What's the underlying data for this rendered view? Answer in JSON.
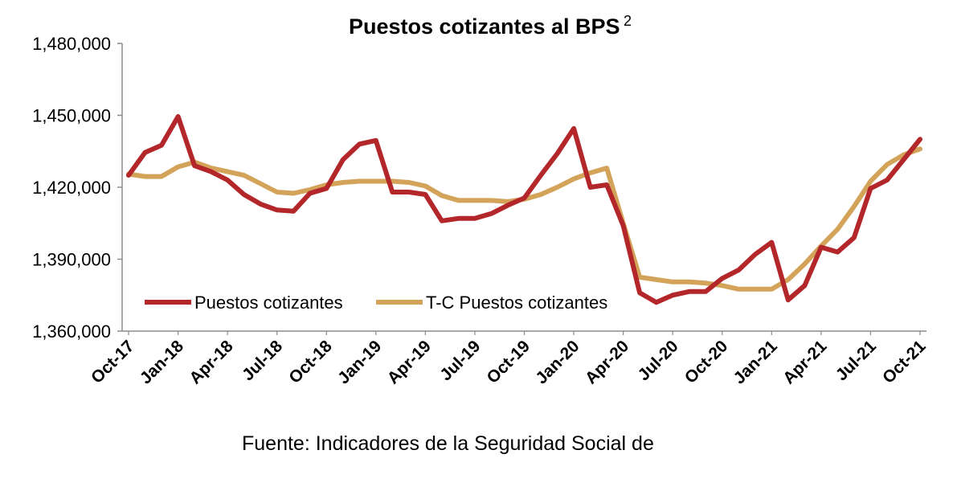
{
  "chart_data": {
    "type": "line",
    "title": "Puestos cotizantes al BPS",
    "title_superscript": "2",
    "xlabel": "",
    "ylabel": "",
    "ylim": [
      1360000,
      1480000
    ],
    "yticks": [
      "1,360,000",
      "1,390,000",
      "1,420,000",
      "1,450,000",
      "1,480,000"
    ],
    "ytick_values": [
      1360000,
      1390000,
      1420000,
      1450000,
      1480000
    ],
    "xtick_labels": [
      "Oct-17",
      "Jan-18",
      "Apr-18",
      "Jul-18",
      "Oct-18",
      "Jan-19",
      "Apr-19",
      "Jul-19",
      "Oct-19",
      "Jan-20",
      "Apr-20",
      "Jul-20",
      "Oct-20",
      "Jan-21",
      "Apr-21",
      "Jul-21",
      "Oct-21"
    ],
    "categories": [
      "Oct-17",
      "Nov-17",
      "Dec-17",
      "Jan-18",
      "Feb-18",
      "Mar-18",
      "Apr-18",
      "May-18",
      "Jun-18",
      "Jul-18",
      "Aug-18",
      "Sep-18",
      "Oct-18",
      "Nov-18",
      "Dec-18",
      "Jan-19",
      "Feb-19",
      "Mar-19",
      "Apr-19",
      "May-19",
      "Jun-19",
      "Jul-19",
      "Aug-19",
      "Sep-19",
      "Oct-19",
      "Nov-19",
      "Dec-19",
      "Jan-20",
      "Feb-20",
      "Mar-20",
      "Apr-20",
      "May-20",
      "Jun-20",
      "Jul-20",
      "Aug-20",
      "Sep-20",
      "Oct-20",
      "Nov-20",
      "Dec-20",
      "Jan-21",
      "Feb-21",
      "Mar-21",
      "Apr-21",
      "May-21",
      "Jun-21",
      "Jul-21",
      "Aug-21",
      "Sep-21",
      "Oct-21"
    ],
    "series": [
      {
        "name": "Puestos cotizantes",
        "color": "#B3272B",
        "values": [
          1425000,
          1434500,
          1437500,
          1449500,
          1429000,
          1426500,
          1423000,
          1417000,
          1413000,
          1410500,
          1410000,
          1417500,
          1419500,
          1431500,
          1438000,
          1439500,
          1418000,
          1418000,
          1417000,
          1406000,
          1407000,
          1407000,
          1409000,
          1412500,
          1415500,
          1425000,
          1434000,
          1444500,
          1420000,
          1421000,
          1404000,
          1376000,
          1372000,
          1375000,
          1376500,
          1376500,
          1382000,
          1385500,
          1392000,
          1397000,
          1373000,
          1379000,
          1395000,
          1393000,
          1399000,
          1419500,
          1423000,
          1431500,
          1440000
        ]
      },
      {
        "name": "T-C Puestos cotizantes",
        "color": "#D4A35A",
        "values": [
          1425500,
          1424500,
          1424500,
          1428500,
          1430500,
          1428000,
          1426500,
          1425000,
          1421500,
          1418000,
          1417500,
          1419000,
          1421000,
          1422000,
          1422500,
          1422500,
          1422500,
          1422000,
          1420500,
          1416500,
          1414500,
          1414500,
          1414500,
          1414000,
          1415000,
          1417000,
          1420000,
          1423500,
          1426000,
          1428000,
          1405000,
          1382500,
          1381500,
          1380500,
          1380500,
          1380000,
          1379000,
          1377500,
          1377500,
          1377500,
          1381500,
          1388000,
          1395500,
          1402500,
          1412000,
          1422500,
          1429500,
          1433500,
          1436000
        ]
      }
    ],
    "legend_position": "inside-bottom-left",
    "grid": false
  },
  "source": {
    "text": "Fuente: Indicadores de la Seguridad Social de"
  }
}
